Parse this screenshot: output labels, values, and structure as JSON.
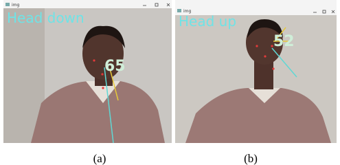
{
  "panels": [
    {
      "window_title": "img",
      "label": "Head down",
      "angle": 65,
      "caption": "(a)"
    },
    {
      "window_title": "img",
      "label": "Head up",
      "angle": 52,
      "caption": "(b)"
    }
  ]
}
